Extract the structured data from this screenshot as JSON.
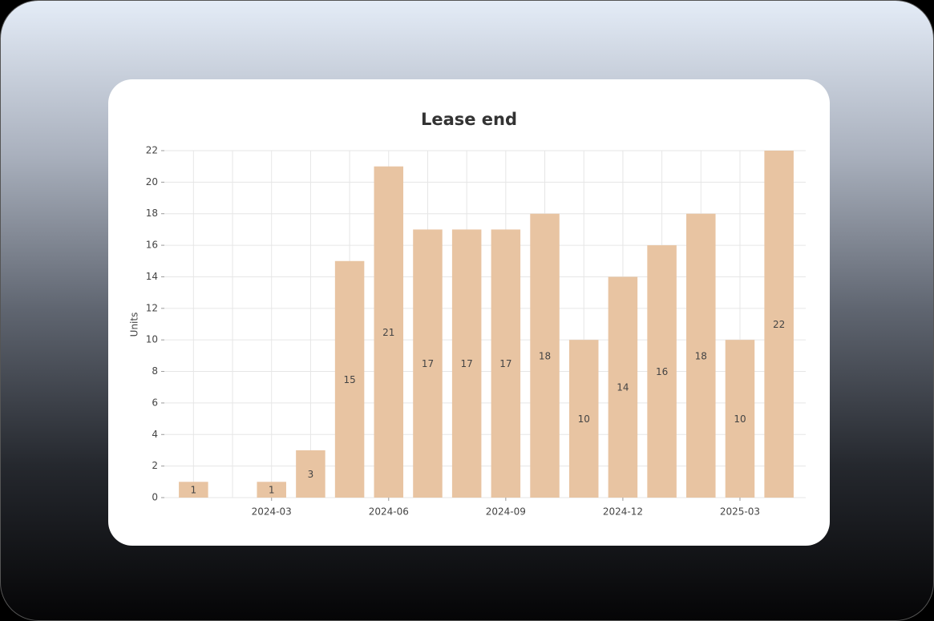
{
  "chart_data": {
    "type": "bar",
    "title": "Lease end",
    "y_label": "Units",
    "categories": [
      null,
      null,
      "2024-03",
      null,
      null,
      "2024-06",
      null,
      null,
      "2024-09",
      null,
      null,
      "2024-12",
      null,
      null,
      "2025-03",
      null
    ],
    "values": [
      1,
      null,
      1,
      3,
      15,
      21,
      17,
      17,
      17,
      18,
      10,
      14,
      16,
      18,
      10,
      22
    ],
    "color": "#e8c4a2",
    "ylim": [
      0,
      22
    ],
    "yticks": [
      0,
      2,
      4,
      6,
      8,
      10,
      12,
      14,
      16,
      18,
      20,
      22
    ],
    "grid": true
  }
}
